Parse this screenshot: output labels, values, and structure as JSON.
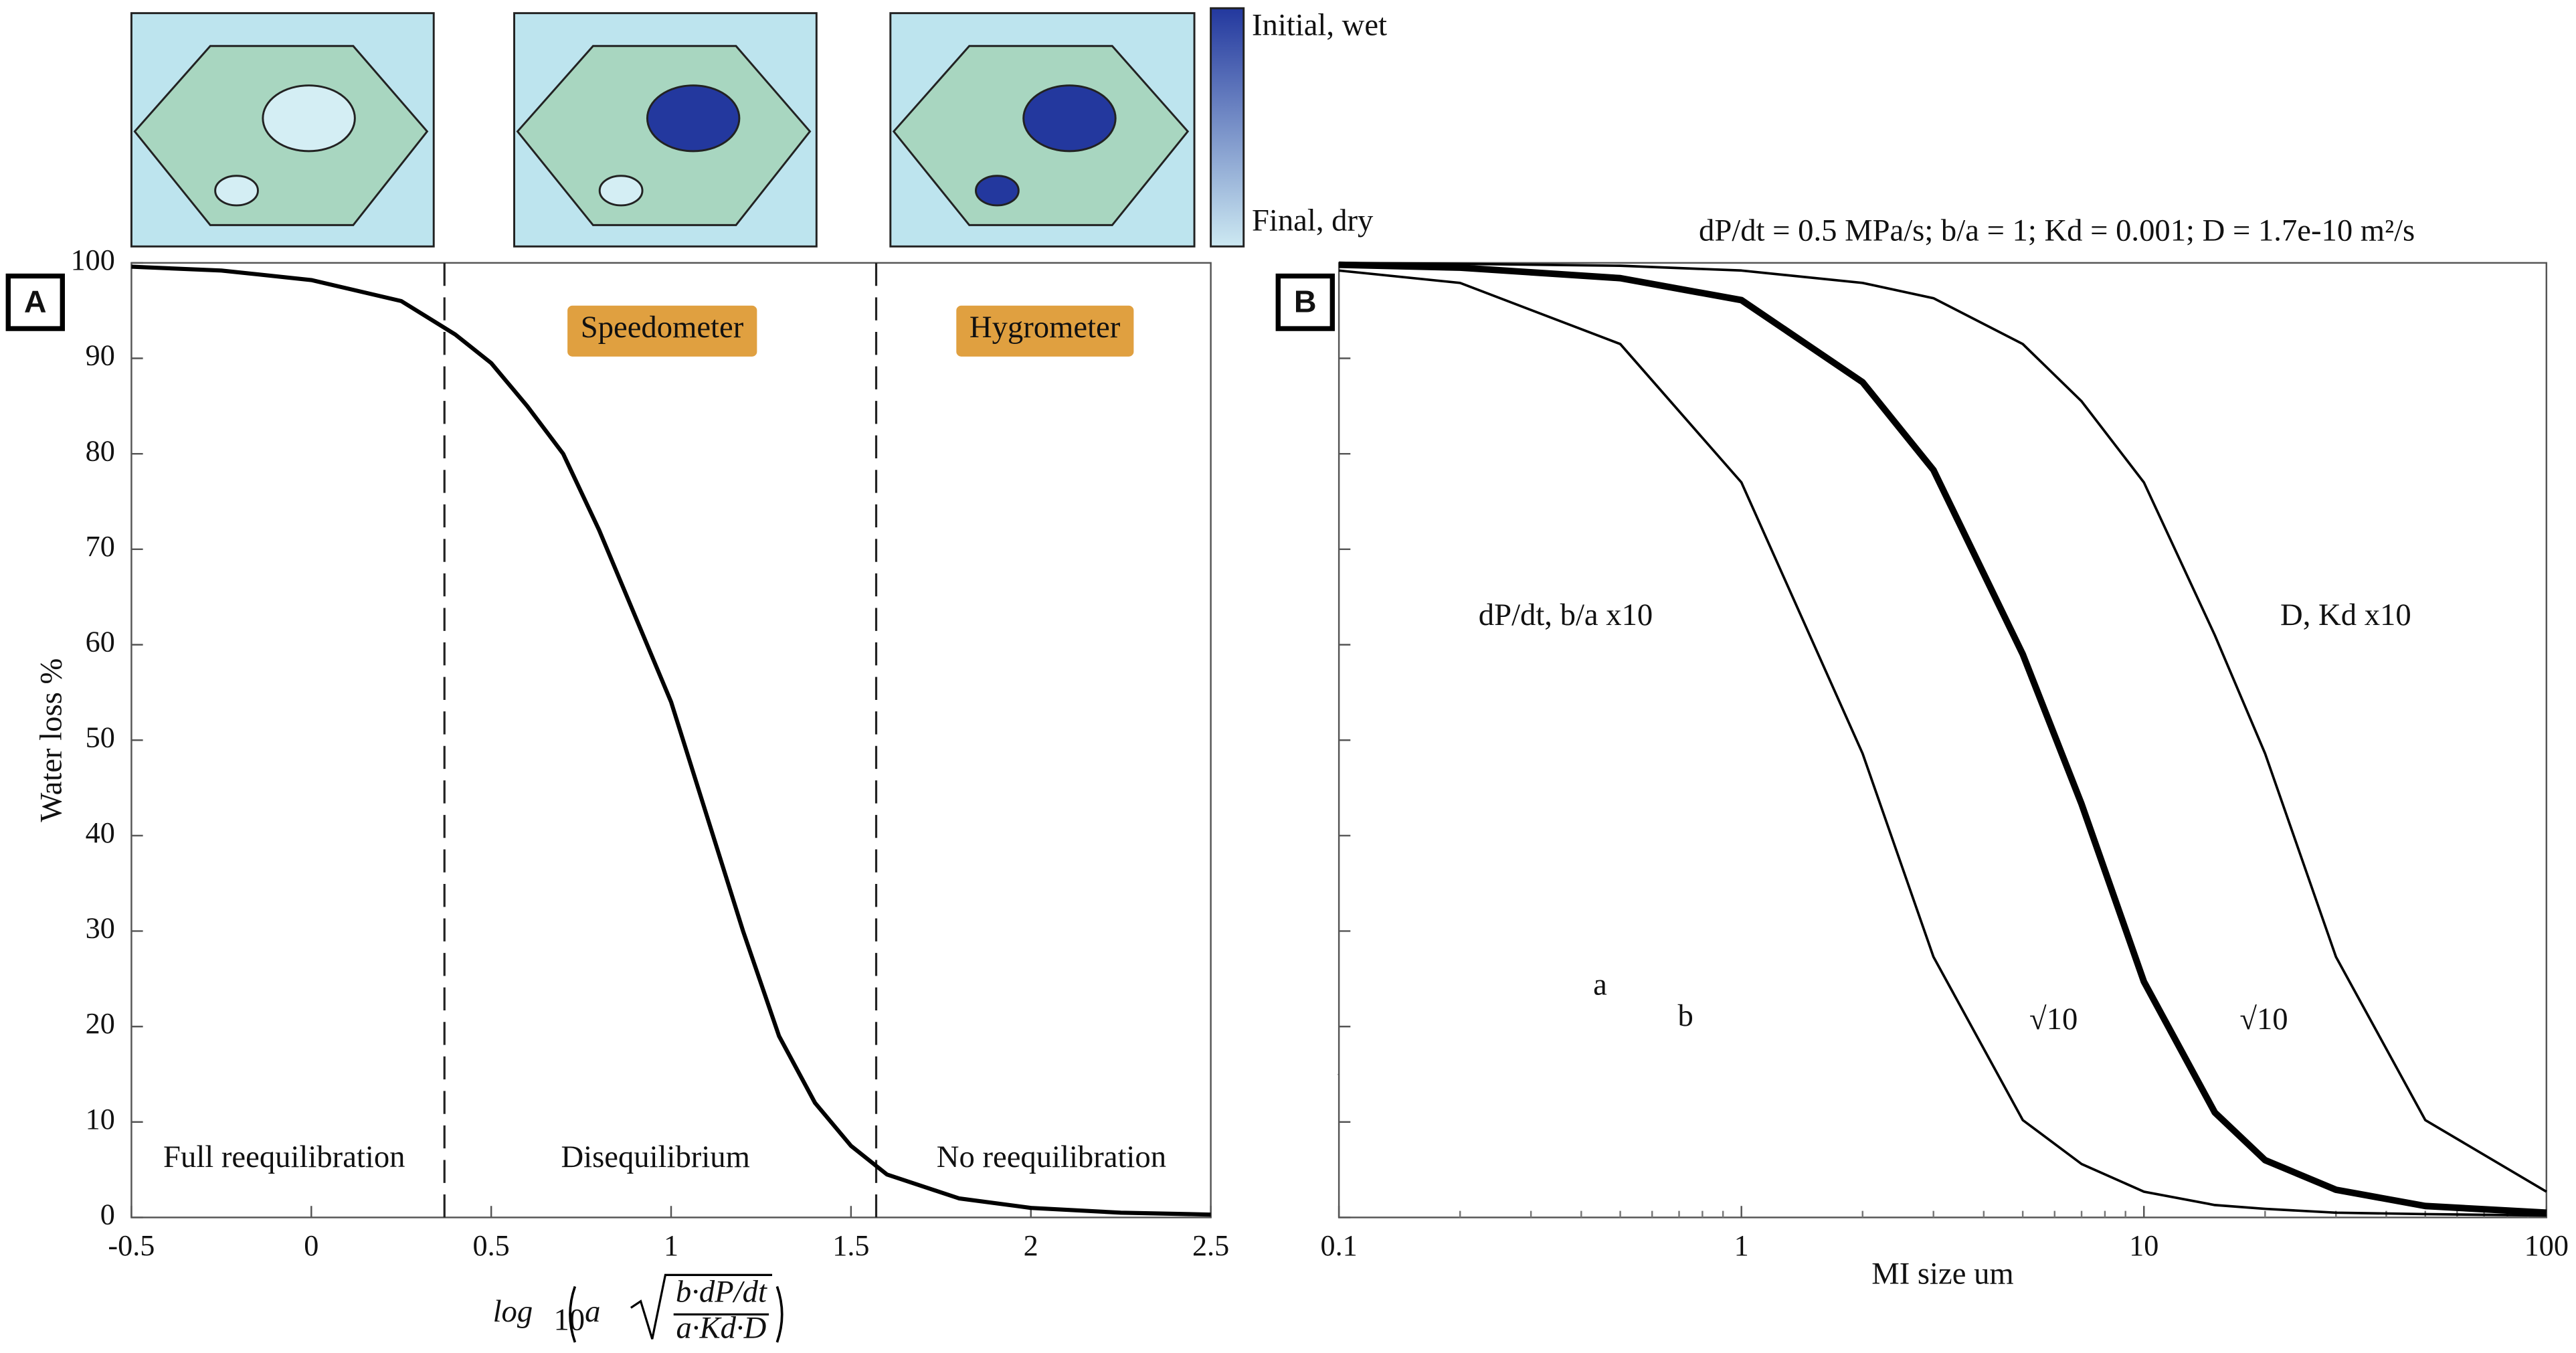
{
  "chart_data": [
    {
      "type": "line",
      "panel": "A",
      "ylabel": "Water loss %",
      "xlabel": {
        "fn": "log",
        "base": "10",
        "arg": "a",
        "numerator": "b·dP/dt",
        "denominator": "a·Kd·D"
      },
      "xlim": [
        -0.5,
        2.5
      ],
      "xticks": [
        -0.5,
        0,
        0.5,
        1,
        1.5,
        2,
        2.5
      ],
      "ylim": [
        0,
        100
      ],
      "yticks": [
        0,
        10,
        20,
        30,
        40,
        50,
        60,
        70,
        80,
        90,
        100
      ],
      "vlines": [
        0.37,
        1.57
      ],
      "annotations": [
        "Speedometer",
        "Hygrometer",
        "Full reequilibration",
        "Disequilibrium",
        "No reequilibration"
      ],
      "colorbar_labels": [
        "Initial, wet",
        "Final, dry"
      ],
      "x": [
        -0.5,
        -0.25,
        0,
        0.25,
        0.4,
        0.5,
        0.6,
        0.7,
        0.8,
        0.9,
        1.0,
        1.1,
        1.2,
        1.3,
        1.4,
        1.5,
        1.6,
        1.8,
        2.0,
        2.25,
        2.5
      ],
      "series": [
        {
          "color": "#000000",
          "width": 2.5,
          "values": [
            99.6,
            99.2,
            98.2,
            96,
            92.5,
            89.5,
            85,
            80,
            72,
            63,
            54,
            42,
            30,
            19,
            12,
            7.5,
            4.5,
            2,
            1,
            0.5,
            0.3
          ]
        }
      ]
    },
    {
      "type": "line",
      "panel": "B",
      "title": "dP/dt = 0.5 MPa/s;   b/a = 1;   Kd = 0.001;   D = 1.7e-10 m²/s",
      "xlabel": "MI size um",
      "xscale": "log",
      "xlim": [
        0.1,
        100
      ],
      "xticks": [
        0.1,
        1,
        10,
        100
      ],
      "ylim": [
        0,
        100
      ],
      "yticks": [
        0,
        10,
        20,
        30,
        40,
        50,
        60,
        70,
        80,
        90,
        100
      ],
      "show_ytick_labels": false,
      "annotations": [
        "dP/dt, b/a x10",
        "D, Kd x10",
        "√10",
        "√10",
        "a",
        "b"
      ],
      "x": [
        0.1,
        0.2,
        0.5,
        1,
        2,
        3,
        5,
        7,
        10,
        15,
        20,
        30,
        50,
        100
      ],
      "series": [
        {
          "color": "#000000",
          "width": 1.5,
          "values": [
            99.2,
            97.9,
            91.5,
            77,
            48.6,
            27.3,
            10.2,
            5.6,
            2.7,
            1.3,
            0.9,
            0.5,
            0.35,
            0.2
          ]
        },
        {
          "color": "#000000",
          "width": 4,
          "values": [
            99.8,
            99.5,
            98.4,
            96.1,
            87.5,
            78.3,
            59,
            43.3,
            24.7,
            11,
            6,
            2.9,
            1.2,
            0.5
          ]
        },
        {
          "color": "#000000",
          "width": 1.5,
          "values": [
            100,
            99.9,
            99.7,
            99.2,
            97.9,
            96.3,
            91.5,
            85.5,
            77,
            61,
            48.6,
            27.3,
            10.2,
            2.7
          ]
        }
      ]
    }
  ]
}
